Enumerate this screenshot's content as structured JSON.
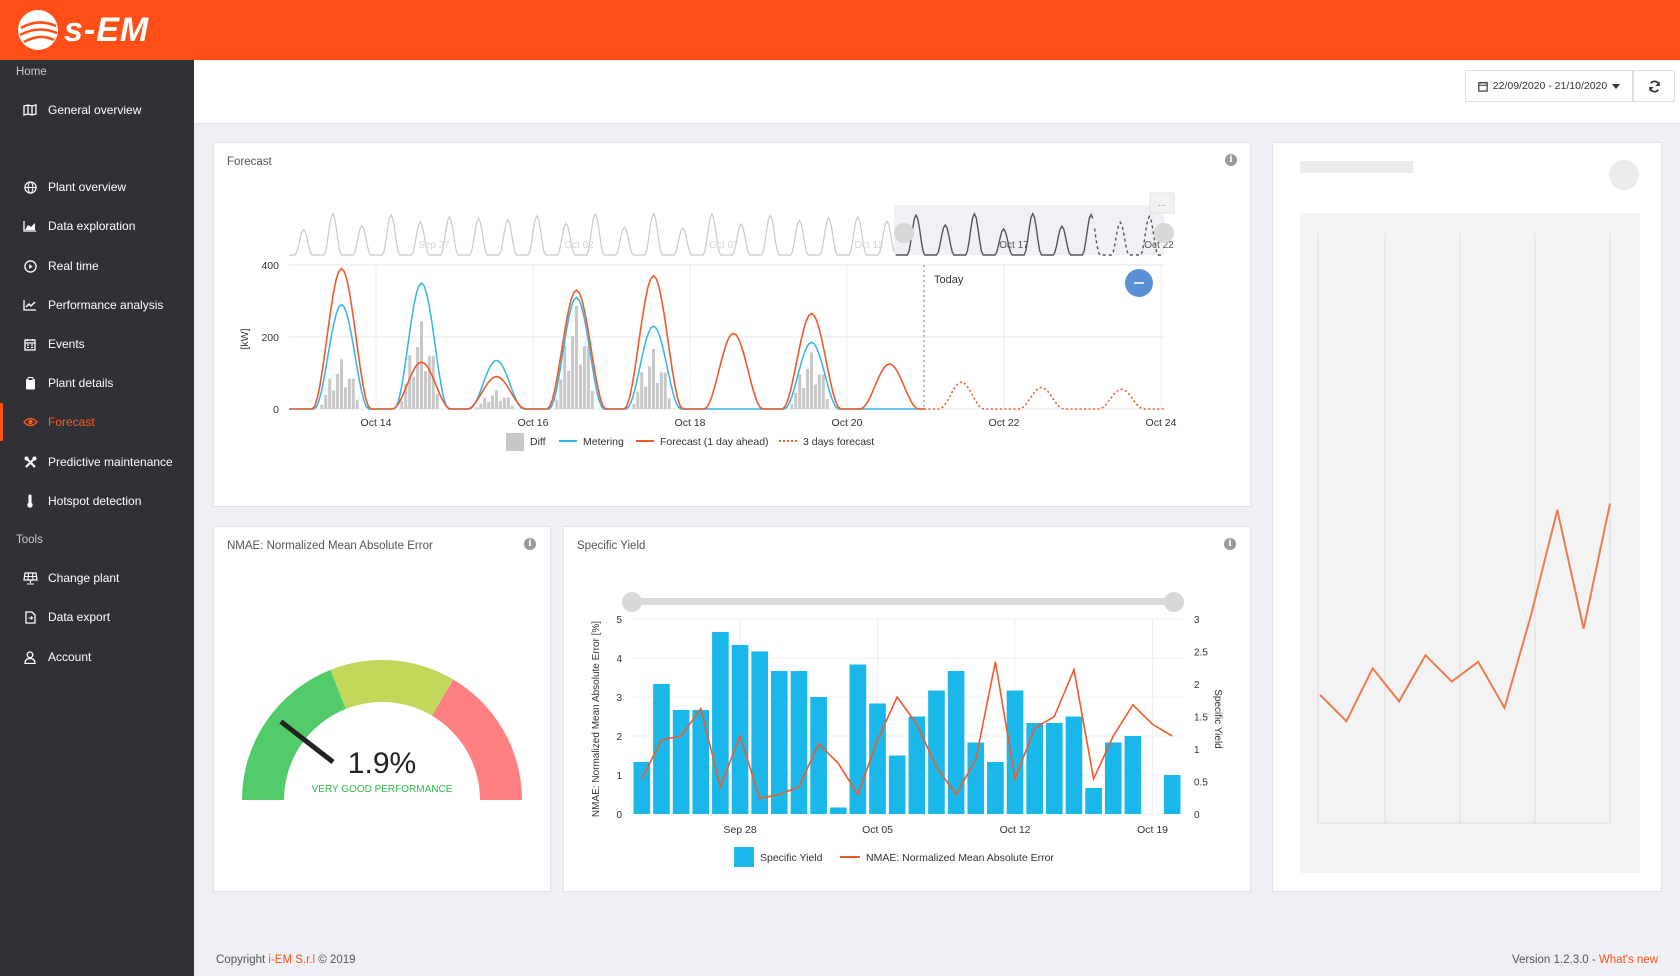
{
  "brand": {
    "name": "s-EM",
    "accent": "#ff4f16"
  },
  "sidebar": {
    "section_home": "Home",
    "section_tools": "Tools",
    "items": [
      {
        "label": "General overview",
        "icon": "map-icon"
      },
      {
        "label": "Plant overview",
        "icon": "globe-icon"
      },
      {
        "label": "Data exploration",
        "icon": "area-chart-icon"
      },
      {
        "label": "Real time",
        "icon": "play-circle-icon"
      },
      {
        "label": "Performance analysis",
        "icon": "line-chart-icon"
      },
      {
        "label": "Events",
        "icon": "calendar-icon"
      },
      {
        "label": "Plant details",
        "icon": "clipboard-icon"
      },
      {
        "label": "Forecast",
        "icon": "eye-icon",
        "active": true
      },
      {
        "label": "Predictive maintenance",
        "icon": "wrench-icon"
      },
      {
        "label": "Hotspot detection",
        "icon": "thermometer-icon"
      }
    ],
    "tools": [
      {
        "label": "Change plant",
        "icon": "solar-panel-icon"
      },
      {
        "label": "Data export",
        "icon": "file-export-icon"
      },
      {
        "label": "Account",
        "icon": "user-icon"
      }
    ]
  },
  "header": {
    "date_range": "22/09/2020 - 21/10/2020"
  },
  "forecast_panel": {
    "title": "Forecast",
    "today_label": "Today",
    "navigator_labels": [
      "Sep 27",
      "Oct 02",
      "Oct 07",
      "Oct 12",
      "Oct 17",
      "Oct 22"
    ],
    "navigator_menu": "...",
    "legend": [
      "Diff",
      "Metering",
      "Forecast (1 day ahead)",
      "3 days forecast"
    ]
  },
  "nmae_panel": {
    "title": "NMAE: Normalized Mean Absolute Error",
    "value": "1.9%",
    "rating": "VERY GOOD PERFORMANCE"
  },
  "yield_panel": {
    "title": "Specific Yield"
  },
  "footer": {
    "copyright_prefix": "Copyright ",
    "company": "i-EM S.r.l",
    "copyright_suffix": " © 2019",
    "version": "Version 1.2.3.0 - ",
    "whats_new": "What's new"
  },
  "chart_data": [
    {
      "type": "line",
      "ylabel": "[kW]",
      "ylim": [
        0,
        400
      ],
      "yticks": [
        0,
        200,
        400
      ],
      "xticks": [
        "Oct 14",
        "Oct 16",
        "Oct 18",
        "Oct 20",
        "Oct 22",
        "Oct 24"
      ],
      "series": [
        {
          "name": "Forecast (1 day ahead)",
          "daily_peaks": [
            390,
            130,
            90,
            330,
            370,
            210,
            265,
            125
          ],
          "color": "#ee5a2a"
        },
        {
          "name": "Metering",
          "daily_peaks": [
            290,
            350,
            135,
            310,
            230,
            0,
            185,
            0
          ],
          "color": "#33b5e5"
        },
        {
          "name": "Diff",
          "daily_peaks": [
            145,
            255,
            55,
            300,
            175,
            0,
            165,
            0
          ],
          "color": "#c8c8c8"
        },
        {
          "name": "3 days forecast",
          "daily_peaks": [
            75,
            60,
            55
          ],
          "color": "#ee5a2a"
        }
      ],
      "legend": "bottom"
    },
    {
      "type": "bar",
      "ylabel": "NMAE: Normalized Mean Absolute Error [%]",
      "y2label": "Specific Yield",
      "ylim": [
        0,
        5
      ],
      "y2lim": [
        0,
        3
      ],
      "yticks": [
        "0",
        "1",
        "2",
        "3",
        "4",
        "5"
      ],
      "y2ticks": [
        "0",
        "0.5",
        "1",
        "1.5",
        "2",
        "2.5",
        "3"
      ],
      "xticks": [
        "Sep 28",
        "Oct 05",
        "Oct 12",
        "Oct 19"
      ],
      "series": [
        {
          "name": "Specific Yield",
          "color": "#1ab8ea",
          "values": [
            0.8,
            2.0,
            1.6,
            1.6,
            2.8,
            2.6,
            2.5,
            2.2,
            2.2,
            1.8,
            0.1,
            2.3,
            1.7,
            0.9,
            1.5,
            1.9,
            2.2,
            1.1,
            0.8,
            1.9,
            1.4,
            1.4,
            1.5,
            0.4,
            1.1,
            1.2,
            0,
            0.6
          ]
        },
        {
          "name": "NMAE: Normalized Mean Absolute Error",
          "color": "#ee5a2a",
          "values": [
            0.9,
            1.9,
            2.0,
            2.7,
            0.7,
            2.0,
            0.4,
            0.5,
            0.7,
            1.8,
            1.3,
            0.5,
            1.9,
            3.0,
            2.3,
            1.2,
            0.5,
            1.4,
            3.9,
            0.9,
            2.2,
            2.5,
            3.7,
            0.9,
            2.0,
            2.8,
            2.3,
            2.0
          ]
        }
      ],
      "legend": "bottom"
    },
    {
      "type": "line",
      "series": [
        {
          "name": "",
          "color": "#ee7a4e",
          "values": [
            0.27,
            0.23,
            0.31,
            0.26,
            0.33,
            0.29,
            0.32,
            0.25,
            0.39,
            0.55,
            0.37,
            0.56
          ]
        }
      ]
    }
  ]
}
